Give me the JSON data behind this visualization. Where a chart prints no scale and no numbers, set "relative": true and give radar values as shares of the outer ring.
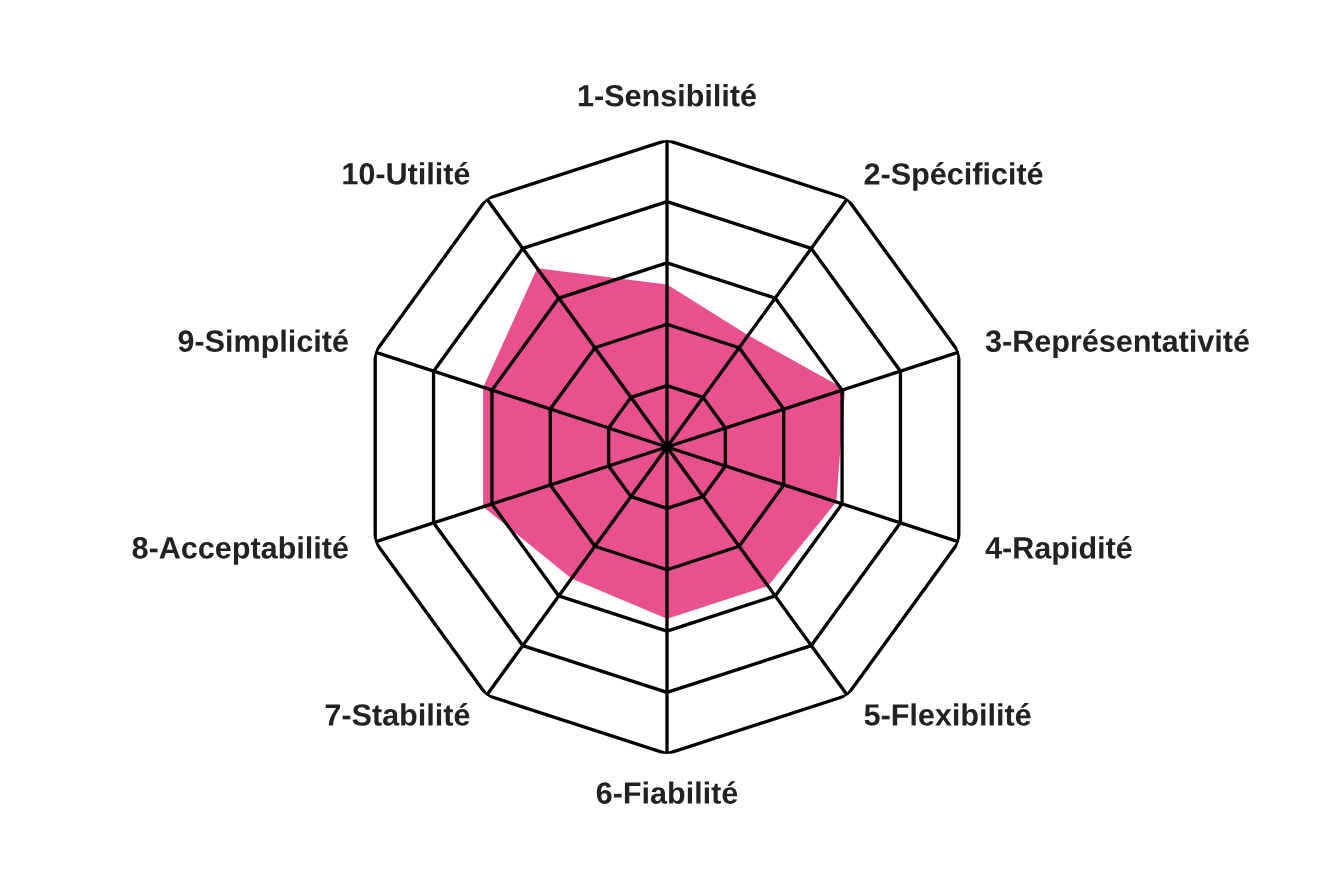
{
  "chart_data": {
    "type": "radar",
    "relative": true,
    "categories": [
      "1-Sensibilité",
      "2-Spécificité",
      "3-Représentativité",
      "4-Rapidité",
      "5-Flexibilité",
      "6-Fiabilité",
      "7-Stabilité",
      "8-Acceptabilité",
      "9-Simplicité",
      "10-Utilité"
    ],
    "series": [
      {
        "color": "#e8508f",
        "values": [
          0.53,
          0.45,
          0.61,
          0.58,
          0.56,
          0.56,
          0.53,
          0.63,
          0.63,
          0.72
        ]
      }
    ]
  }
}
